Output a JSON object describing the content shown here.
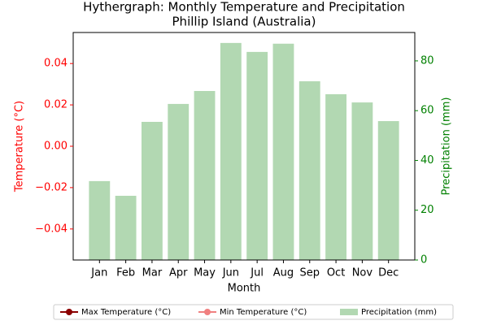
{
  "chart_data": {
    "type": "hythergraph",
    "title": "Hythergraph: Monthly Temperature and Precipitation",
    "subtitle": "Phillip Island (Australia)",
    "x_label": "Month",
    "y_label": "Temperature (°C)",
    "y2_label": "Precipitation (mm)",
    "categories": [
      "Jan",
      "Feb",
      "Mar",
      "Apr",
      "May",
      "Jun",
      "Jul",
      "Aug",
      "Sep",
      "Oct",
      "Nov",
      "Dec"
    ],
    "ylim": [
      -0.055,
      0.055
    ],
    "yticks": [
      {
        "value": -0.04,
        "label": "−0.04"
      },
      {
        "value": -0.02,
        "label": "−0.02"
      },
      {
        "value": 0,
        "label": "0.00"
      },
      {
        "value": 0.02,
        "label": "0.02"
      },
      {
        "value": 0.04,
        "label": "0.04"
      }
    ],
    "y2lim": [
      0,
      91.4
    ],
    "y2ticks": [
      0,
      20,
      40,
      60,
      80
    ],
    "y_color": "#ff0000",
    "y2_color": "#008000",
    "legend": "bottom",
    "series": [
      {
        "name": "Max Temperature (°C)",
        "type": "line",
        "color": "#8b0000",
        "axis": "y",
        "values": [
          null,
          null,
          null,
          null,
          null,
          null,
          null,
          null,
          null,
          null,
          null,
          null
        ]
      },
      {
        "name": "Min Temperature (°C)",
        "type": "line",
        "color": "#f08080",
        "axis": "y",
        "values": [
          null,
          null,
          null,
          null,
          null,
          null,
          null,
          null,
          null,
          null,
          null,
          null
        ]
      },
      {
        "name": "Precipitation (mm)",
        "type": "bar",
        "color": "#b2d8b2",
        "axis": "y2",
        "values": [
          31.7,
          25.8,
          55.5,
          62.7,
          67.9,
          87.2,
          83.6,
          86.9,
          71.8,
          66.6,
          63.3,
          55.8
        ]
      }
    ]
  }
}
